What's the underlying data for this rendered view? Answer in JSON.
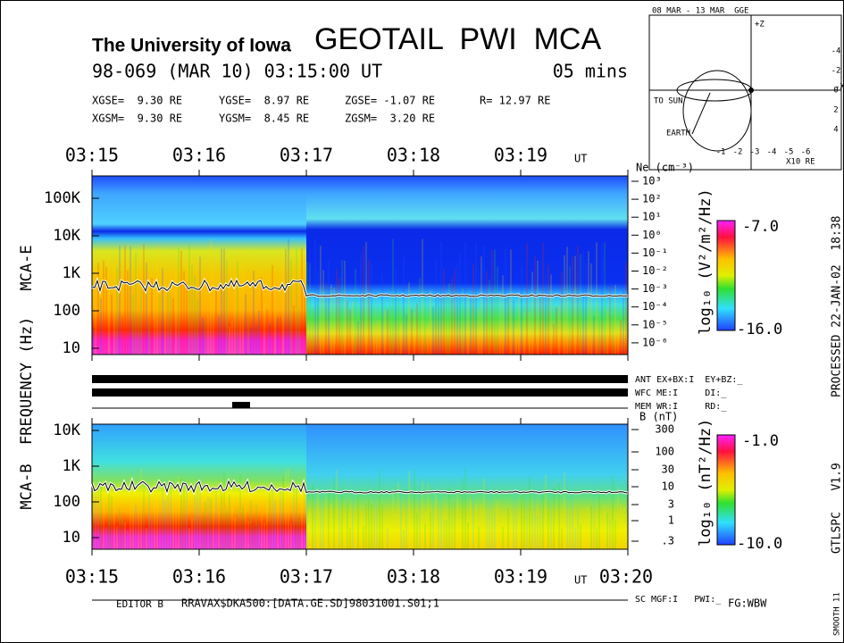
{
  "header": {
    "institution": "The University of Iowa",
    "instrument": "GEOTAIL  PWI  MCA",
    "epoch": "98-069 (MAR 10) 03:15:00 UT",
    "span": "05 mins"
  },
  "position": {
    "gse": [
      "XGSE=  9.30 RE",
      "YGSE=  8.97 RE",
      "ZGSE= -1.07 RE",
      "R= 12.97 RE"
    ],
    "gsm": [
      "XGSM=  9.30 RE",
      "YGSM=  8.45 RE",
      "ZGSM=  3.20 RE"
    ]
  },
  "orbit": {
    "title": "08 MAR - 13 MAR  GGE",
    "sun": "TO SUN",
    "earth": "EARTH",
    "x_unit": "X10 RE",
    "x_ticks": [
      "-1",
      "-2",
      "-3",
      "-4",
      "-5",
      "-6"
    ],
    "y_ticks": [
      "-4",
      "-2",
      "0",
      "2",
      "4"
    ],
    "x_axis": "-X",
    "z_axis": "+Z"
  },
  "time_axis": {
    "labels": [
      "03:15",
      "03:16",
      "03:17",
      "03:18",
      "03:19",
      "03:20"
    ],
    "unit": "UT"
  },
  "frequency_label": "FREQUENCY (Hz)",
  "mca_e": {
    "label": "MCA-E",
    "freq_ticks": [
      "100K",
      "10K",
      "1K",
      "100",
      "10"
    ],
    "density_label": "Ne (cm⁻³)",
    "density_ticks": [
      "10³",
      "10²",
      "10¹",
      "10⁰",
      "10⁻¹",
      "10⁻²",
      "10⁻³",
      "10⁻⁴",
      "10⁻⁵",
      "10⁻⁶"
    ],
    "colorbar_label": "log₁₀ (V²/m²/Hz)",
    "colorbar_max": "-7.0",
    "colorbar_min": "-16.0"
  },
  "status": [
    "ANT EX+BX:I  EY+BZ:_",
    "WFC ME:I     DI:_",
    "MEM WR:I     RD:_"
  ],
  "mca_b": {
    "label": "MCA-B",
    "freq_ticks": [
      "10K",
      "1K",
      "100",
      "10"
    ],
    "field_label": "B (nT)",
    "field_ticks": [
      "300",
      "100",
      "30",
      "10",
      "3",
      "1",
      ".3"
    ],
    "colorbar_label": "log₁₀ (nT²/Hz)",
    "colorbar_max": "-1.0",
    "colorbar_min": "-10.0"
  },
  "footer": {
    "mgf": "SC MGF:I   PWI:_",
    "editor": "EDITOR B",
    "file": "RRAVAX$DKA500:[DATA.GE.SD]98031001.S01;1",
    "fg": "FG:WBW"
  },
  "side": {
    "processed": "PROCESSED 22-JAN-02  18:38",
    "version": "GTLSPC   V1.9",
    "smooth": "SMOOTH 11"
  }
}
